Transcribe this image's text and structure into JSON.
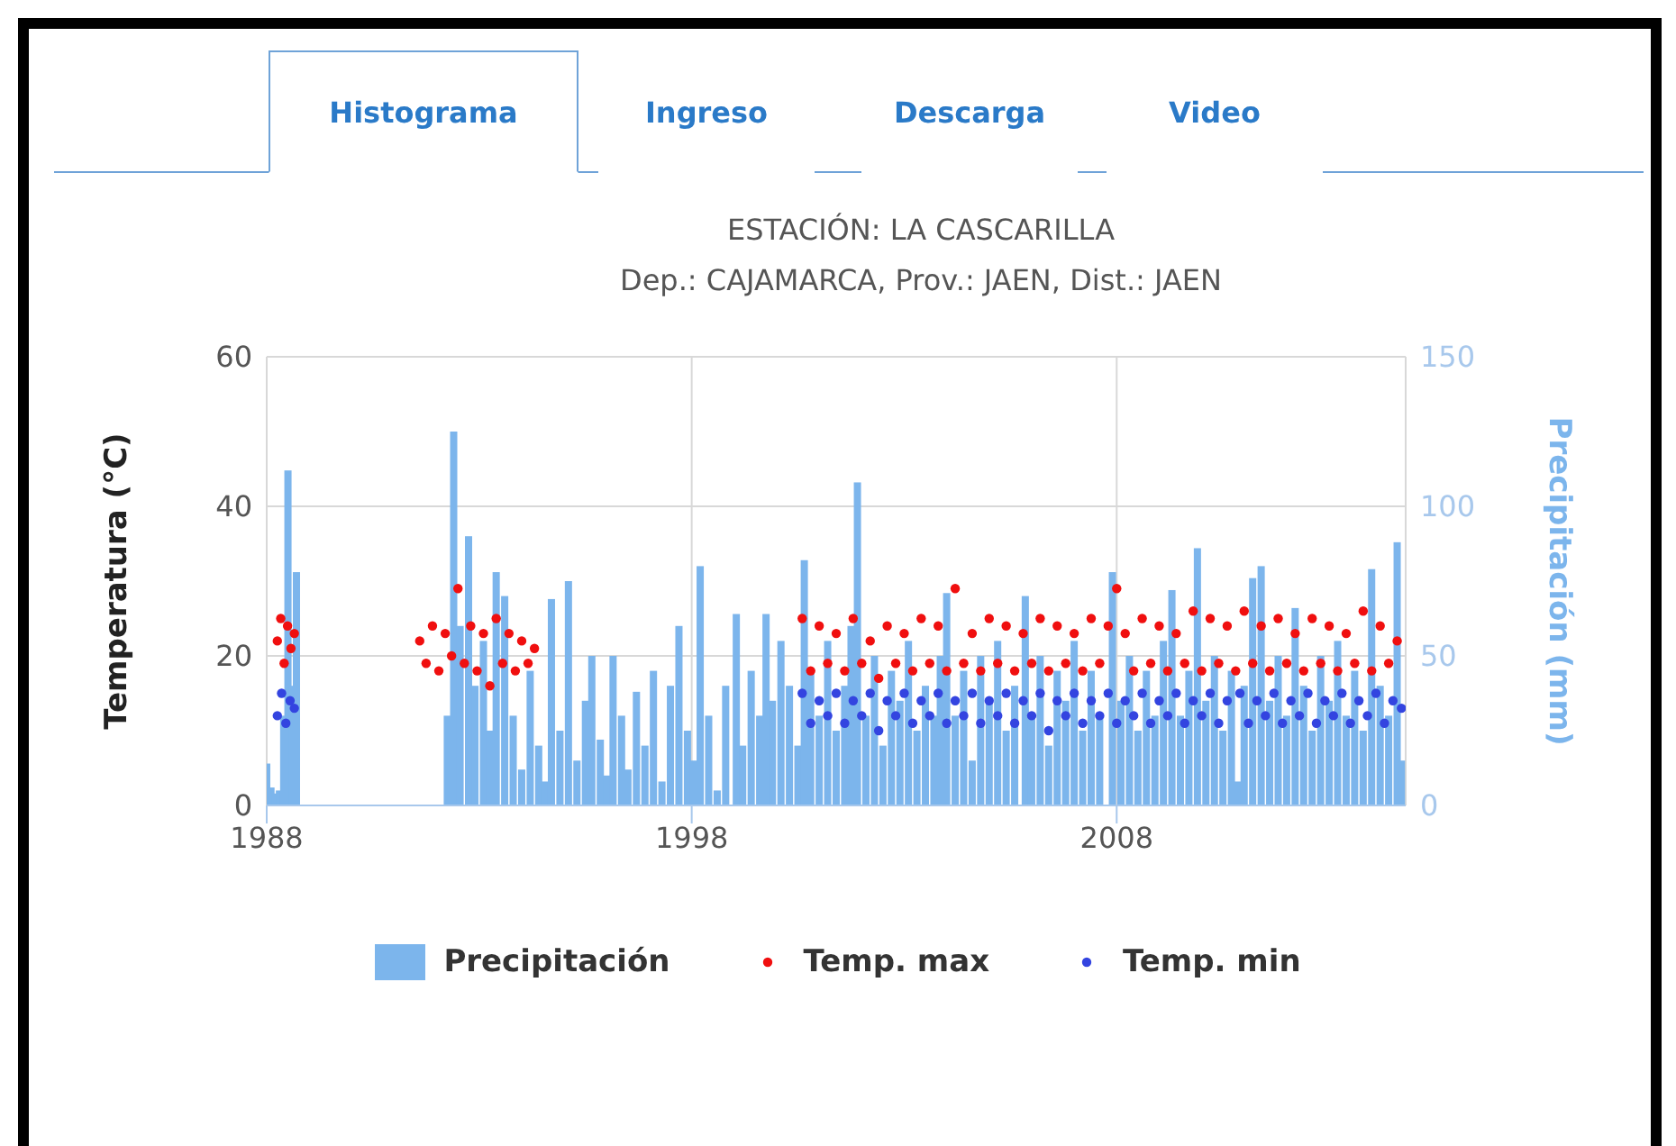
{
  "chart_data": {
    "type": "bar",
    "title": "ESTACIÓN: LA CASCARILLA",
    "subtitle": "Dep.: CAJAMARCA, Prov.: JAEN, Dist.: JAEN",
    "annotations": [
      "Histograma",
      "Ingreso",
      "Descarga",
      "Video"
    ],
    "ylabel": "Temperatura (°C)",
    "y2label": "Precipitación (mm)",
    "xlim": [
      1988,
      2014.8
    ],
    "xticks": [
      1988,
      1998,
      2008
    ],
    "ylim": [
      0,
      60
    ],
    "yticks": [
      0,
      20,
      40,
      60
    ],
    "y2lim": [
      0,
      150
    ],
    "y2ticks": [
      0,
      50,
      100,
      150
    ],
    "grid": true,
    "legend": "bottom",
    "marker": "circle",
    "series": [
      {
        "name": "Precipitación",
        "axis": "y2",
        "color": "#7cb5ec",
        "x": [
          1988.0,
          1988.1,
          1988.2,
          1988.3,
          1988.4,
          1988.5,
          1988.6,
          1988.7,
          1992.25,
          1992.4,
          1992.55,
          1992.75,
          1992.9,
          1993.1,
          1993.25,
          1993.4,
          1993.6,
          1993.8,
          1994.0,
          1994.2,
          1994.4,
          1994.55,
          1994.7,
          1994.9,
          1995.1,
          1995.3,
          1995.5,
          1995.65,
          1995.85,
          1996.0,
          1996.15,
          1996.35,
          1996.5,
          1996.7,
          1996.9,
          1997.1,
          1997.3,
          1997.5,
          1997.7,
          1997.9,
          1998.05,
          1998.2,
          1998.4,
          1998.6,
          1998.8,
          1999.05,
          1999.2,
          1999.4,
          1999.6,
          1999.75,
          1999.9,
          2000.1,
          2000.3,
          2000.5,
          2000.65,
          2000.8,
          2001.0,
          2001.2,
          2001.4,
          2001.6,
          2001.75,
          2001.9,
          2002.1,
          2002.3,
          2002.5,
          2002.7,
          2002.9,
          2003.1,
          2003.3,
          2003.5,
          2003.7,
          2003.85,
          2004.0,
          2004.2,
          2004.4,
          2004.6,
          2004.8,
          2005.0,
          2005.2,
          2005.4,
          2005.6,
          2005.85,
          2006.0,
          2006.2,
          2006.4,
          2006.6,
          2006.8,
          2007.0,
          2007.2,
          2007.4,
          2007.6,
          2007.9,
          2008.1,
          2008.3,
          2008.5,
          2008.7,
          2008.9,
          2009.1,
          2009.3,
          2009.5,
          2009.7,
          2009.9,
          2010.1,
          2010.3,
          2010.5,
          2010.7,
          2010.85,
          2011.0,
          2011.2,
          2011.4,
          2011.6,
          2011.8,
          2012.0,
          2012.2,
          2012.4,
          2012.6,
          2012.8,
          2013.0,
          2013.2,
          2013.4,
          2013.6,
          2013.8,
          2014.0,
          2014.2,
          2014.4,
          2014.6,
          2014.7
        ],
        "values": [
          14,
          6,
          4,
          5,
          30,
          112,
          40,
          78,
          30,
          125,
          60,
          90,
          40,
          55,
          25,
          78,
          70,
          30,
          12,
          45,
          20,
          8,
          69,
          25,
          75,
          15,
          35,
          50,
          22,
          10,
          50,
          30,
          12,
          38,
          20,
          45,
          8,
          40,
          60,
          25,
          15,
          80,
          30,
          5,
          40,
          64,
          20,
          45,
          30,
          64,
          35,
          55,
          40,
          20,
          82,
          45,
          30,
          55,
          25,
          40,
          60,
          108,
          30,
          50,
          20,
          45,
          35,
          55,
          25,
          40,
          30,
          50,
          71,
          30,
          45,
          15,
          50,
          35,
          55,
          25,
          40,
          70,
          30,
          50,
          20,
          45,
          35,
          55,
          25,
          45,
          30,
          78,
          35,
          50,
          25,
          45,
          30,
          55,
          72,
          30,
          45,
          86,
          35,
          50,
          25,
          45,
          8,
          40,
          76,
          80,
          35,
          50,
          30,
          66,
          40,
          25,
          50,
          35,
          55,
          30,
          45,
          25,
          79,
          40,
          30,
          88,
          15
        ]
      },
      {
        "name": "Temp. max",
        "type": "scatter",
        "color": "#f00f0f",
        "x": [
          1988.25,
          1988.33,
          1988.41,
          1988.49,
          1988.57,
          1988.65,
          1991.6,
          1991.75,
          1991.9,
          1992.05,
          1992.2,
          1992.35,
          1992.5,
          1992.65,
          1992.8,
          1992.95,
          1993.1,
          1993.25,
          1993.4,
          1993.55,
          1993.7,
          1993.85,
          1994.0,
          1994.15,
          1994.3,
          2000.6,
          2000.8,
          2001.0,
          2001.2,
          2001.4,
          2001.6,
          2001.8,
          2002.0,
          2002.2,
          2002.4,
          2002.6,
          2002.8,
          2003.0,
          2003.2,
          2003.4,
          2003.6,
          2003.8,
          2004.0,
          2004.2,
          2004.4,
          2004.6,
          2004.8,
          2005.0,
          2005.2,
          2005.4,
          2005.6,
          2005.8,
          2006.0,
          2006.2,
          2006.4,
          2006.6,
          2006.8,
          2007.0,
          2007.2,
          2007.4,
          2007.6,
          2007.8,
          2008.0,
          2008.2,
          2008.4,
          2008.6,
          2008.8,
          2009.0,
          2009.2,
          2009.4,
          2009.6,
          2009.8,
          2010.0,
          2010.2,
          2010.4,
          2010.6,
          2010.8,
          2011.0,
          2011.2,
          2011.4,
          2011.6,
          2011.8,
          2012.0,
          2012.2,
          2012.4,
          2012.6,
          2012.8,
          2013.0,
          2013.2,
          2013.4,
          2013.6,
          2013.8,
          2014.0,
          2014.2,
          2014.4,
          2014.6
        ],
        "values": [
          22,
          25,
          19,
          24,
          21,
          23,
          22,
          19,
          24,
          18,
          23,
          20,
          29,
          19,
          24,
          18,
          23,
          16,
          25,
          19,
          23,
          18,
          22,
          19,
          21,
          25,
          18,
          24,
          19,
          23,
          18,
          25,
          19,
          22,
          17,
          24,
          19,
          23,
          18,
          25,
          19,
          24,
          18,
          29,
          19,
          23,
          18,
          25,
          19,
          24,
          18,
          23,
          19,
          25,
          18,
          24,
          19,
          23,
          18,
          25,
          19,
          24,
          29,
          23,
          18,
          25,
          19,
          24,
          18,
          23,
          19,
          26,
          18,
          25,
          19,
          24,
          18,
          26,
          19,
          24,
          18,
          25,
          19,
          23,
          18,
          25,
          19,
          24,
          18,
          23,
          19,
          26,
          18,
          24,
          19,
          22
        ]
      },
      {
        "name": "Temp. min",
        "type": "scatter",
        "color": "#3344e0",
        "x": [
          1988.25,
          1988.35,
          1988.45,
          1988.55,
          1988.65,
          2000.6,
          2000.8,
          2001.0,
          2001.2,
          2001.4,
          2001.6,
          2001.8,
          2002.0,
          2002.2,
          2002.4,
          2002.6,
          2002.8,
          2003.0,
          2003.2,
          2003.4,
          2003.6,
          2003.8,
          2004.0,
          2004.2,
          2004.4,
          2004.6,
          2004.8,
          2005.0,
          2005.2,
          2005.4,
          2005.6,
          2005.8,
          2006.0,
          2006.2,
          2006.4,
          2006.6,
          2006.8,
          2007.0,
          2007.2,
          2007.4,
          2007.6,
          2007.8,
          2008.0,
          2008.2,
          2008.4,
          2008.6,
          2008.8,
          2009.0,
          2009.2,
          2009.4,
          2009.6,
          2009.8,
          2010.0,
          2010.2,
          2010.4,
          2010.6,
          2010.9,
          2011.1,
          2011.3,
          2011.5,
          2011.7,
          2011.9,
          2012.1,
          2012.3,
          2012.5,
          2012.7,
          2012.9,
          2013.1,
          2013.3,
          2013.5,
          2013.7,
          2013.9,
          2014.1,
          2014.3,
          2014.5,
          2014.7
        ],
        "values": [
          12,
          15,
          11,
          14,
          13,
          15,
          11,
          14,
          12,
          15,
          11,
          14,
          12,
          15,
          10,
          14,
          12,
          15,
          11,
          14,
          12,
          15,
          11,
          14,
          12,
          15,
          11,
          14,
          12,
          15,
          11,
          14,
          12,
          15,
          10,
          14,
          12,
          15,
          11,
          14,
          12,
          15,
          11,
          14,
          12,
          15,
          11,
          14,
          12,
          15,
          11,
          14,
          12,
          15,
          11,
          14,
          15,
          11,
          14,
          12,
          15,
          11,
          14,
          12,
          15,
          11,
          14,
          12,
          15,
          11,
          14,
          12,
          15,
          11,
          14,
          13
        ]
      }
    ]
  }
}
